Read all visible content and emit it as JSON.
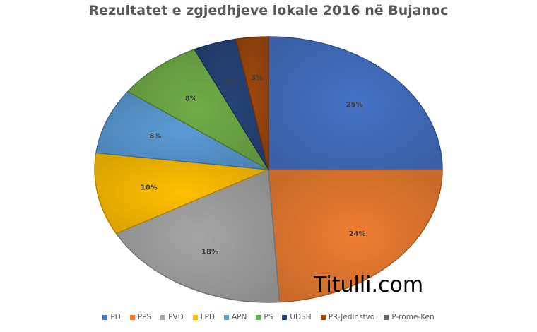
{
  "chart_data": {
    "type": "pie",
    "title": "Rezultatet e zgjedhjeve lokale 2016 në Bujanoc",
    "slices": [
      {
        "name": "PD",
        "value": 25,
        "label": "25%",
        "color": "#4472C4"
      },
      {
        "name": "PPS",
        "value": 24,
        "label": "24%",
        "color": "#ED7D31"
      },
      {
        "name": "PVD",
        "value": 18,
        "label": "18%",
        "color": "#A5A5A5"
      },
      {
        "name": "LPD",
        "value": 10,
        "label": "10%",
        "color": "#FFC000"
      },
      {
        "name": "APN",
        "value": 8,
        "label": "8%",
        "color": "#5B9BD5"
      },
      {
        "name": "PS",
        "value": 8,
        "label": "8%",
        "color": "#70AD47"
      },
      {
        "name": "UDSH",
        "value": 4,
        "label": "4%",
        "color": "#264478"
      },
      {
        "name": "PR-Jedinstvo",
        "value": 3,
        "label": "3%",
        "color": "#9E480E"
      },
      {
        "name": "P-rome-Ken",
        "value": 0,
        "label": "",
        "color": "#636363"
      }
    ],
    "legend_position": "bottom"
  },
  "watermark": "Titulli.com"
}
